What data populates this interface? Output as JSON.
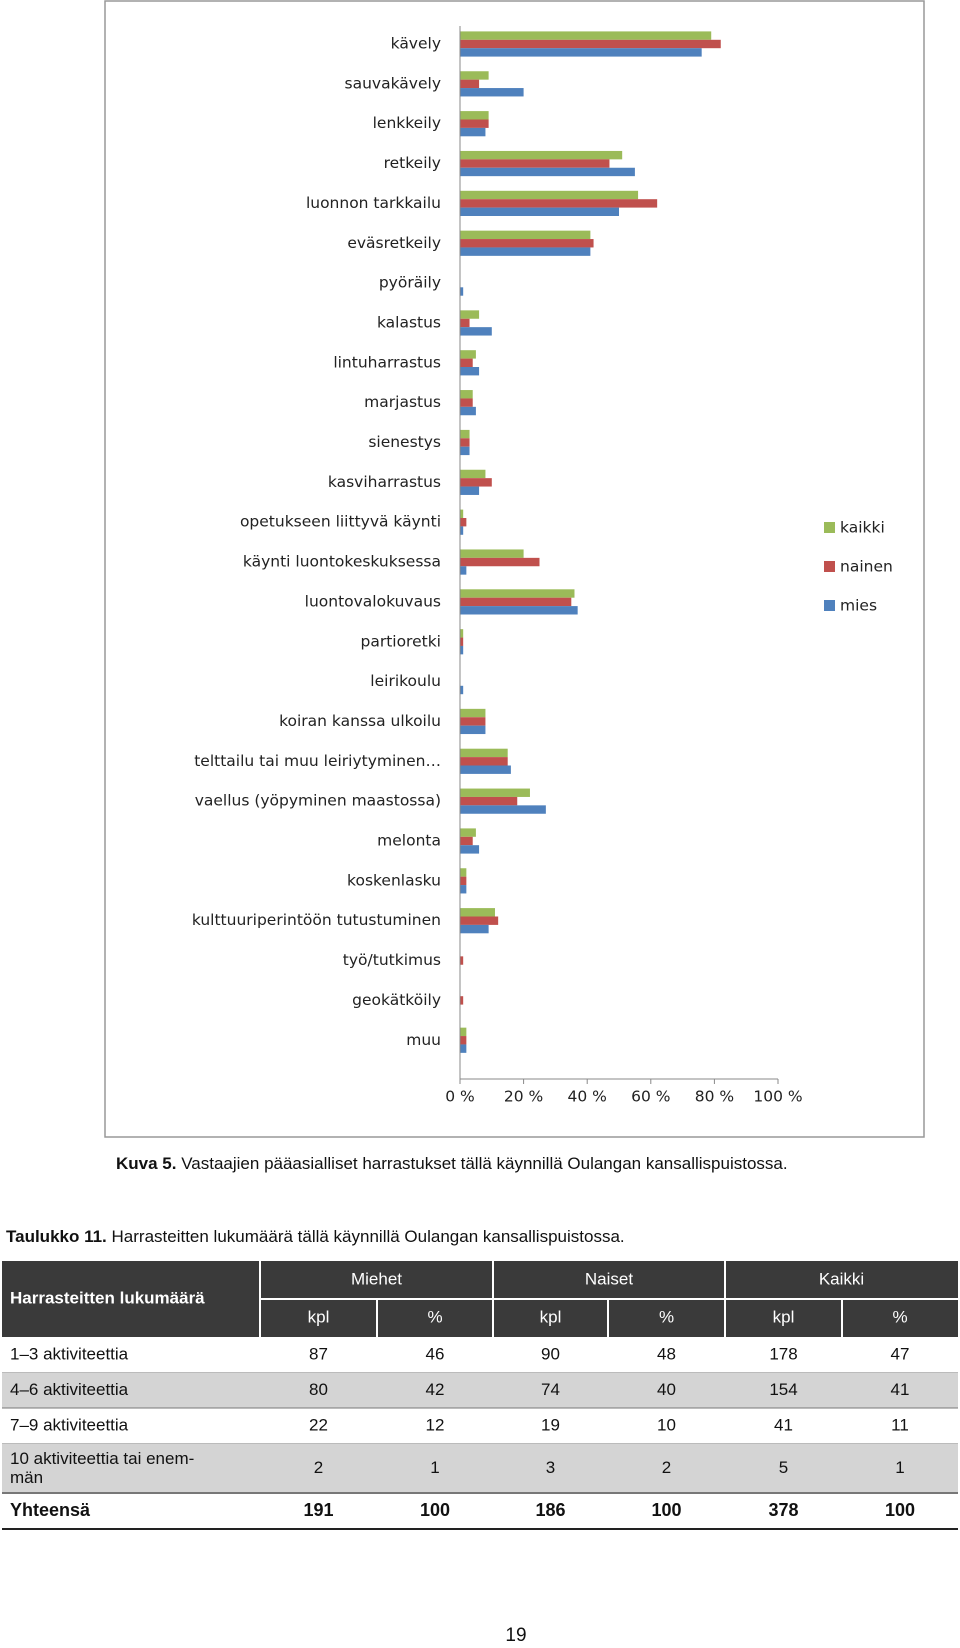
{
  "chart_data": {
    "type": "bar",
    "orientation": "horizontal",
    "categories": [
      "kävely",
      "sauvakävely",
      "lenkkeily",
      "retkeily",
      "luonnon tarkkailu",
      "eväsretkeily",
      "pyöräily",
      "kalastus",
      "lintuharrastus",
      "marjastus",
      "sienestys",
      "kasviharrastus",
      "opetukseen liittyvä käynti",
      "käynti luontokeskuksessa",
      "luontovalokuvaus",
      "partioretki",
      "leirikoulu",
      "koiran kanssa ulkoilu",
      "telttailu tai muu leiriytyminen…",
      "vaellus (yöpyminen maastossa)",
      "melonta",
      "koskenlasku",
      "kulttuuriperintöön tutustuminen",
      "työ/tutkimus",
      "geokätköily",
      "muu"
    ],
    "series": [
      {
        "name": "kaikki",
        "color": "#9bbb59",
        "values": [
          79,
          9,
          9,
          51,
          56,
          41,
          0,
          6,
          5,
          4,
          3,
          8,
          1,
          20,
          36,
          1,
          0,
          8,
          15,
          22,
          5,
          2,
          11,
          0,
          0,
          2
        ]
      },
      {
        "name": "nainen",
        "color": "#c0504d",
        "values": [
          82,
          6,
          9,
          47,
          62,
          42,
          0,
          3,
          4,
          4,
          3,
          10,
          2,
          25,
          35,
          1,
          0,
          8,
          15,
          18,
          4,
          2,
          12,
          1,
          1,
          2
        ]
      },
      {
        "name": "mies",
        "color": "#4f81bd",
        "values": [
          76,
          20,
          8,
          55,
          50,
          41,
          1,
          10,
          6,
          5,
          3,
          6,
          1,
          2,
          37,
          1,
          1,
          8,
          16,
          27,
          6,
          2,
          9,
          0,
          0,
          2
        ]
      }
    ],
    "xlim": [
      0,
      100
    ],
    "xticks": [
      {
        "value": 0,
        "label": "0 %"
      },
      {
        "value": 20,
        "label": "20 %"
      },
      {
        "value": 40,
        "label": "40 %"
      },
      {
        "value": 60,
        "label": "60 %"
      },
      {
        "value": 80,
        "label": "80 %"
      },
      {
        "value": 100,
        "label": "100 %"
      }
    ],
    "legend": "right"
  },
  "caption": {
    "label": "Kuva 5.",
    "text": "Vastaajien pääasialliset harrastukset tällä käynnillä Oulangan kansallispuistossa."
  },
  "table": {
    "title": {
      "label": "Taulukko 11.",
      "text": "Harrasteitten lukumäärä tällä käynnillä Oulangan kansallispuistossa."
    },
    "corner": "Harrasteitten lukumäärä",
    "groups": [
      "Miehet",
      "Naiset",
      "Kaikki"
    ],
    "subheaders": [
      "kpl",
      "%",
      "kpl",
      "%",
      "kpl",
      "%"
    ],
    "rows": [
      {
        "label": "1–3 aktiviteettia",
        "values": [
          87,
          46,
          90,
          48,
          178,
          47
        ]
      },
      {
        "label": "4–6 aktiviteettia",
        "values": [
          80,
          42,
          74,
          40,
          154,
          41
        ]
      },
      {
        "label": "7–9 aktiviteettia",
        "values": [
          22,
          12,
          19,
          10,
          41,
          11
        ]
      },
      {
        "label": [
          "10 aktiviteettia tai enem-",
          "män"
        ],
        "values": [
          2,
          1,
          3,
          2,
          5,
          1
        ]
      }
    ],
    "total": {
      "label": "Yhteensä",
      "values": [
        191,
        100,
        186,
        100,
        378,
        100
      ]
    }
  },
  "page_number": "19"
}
